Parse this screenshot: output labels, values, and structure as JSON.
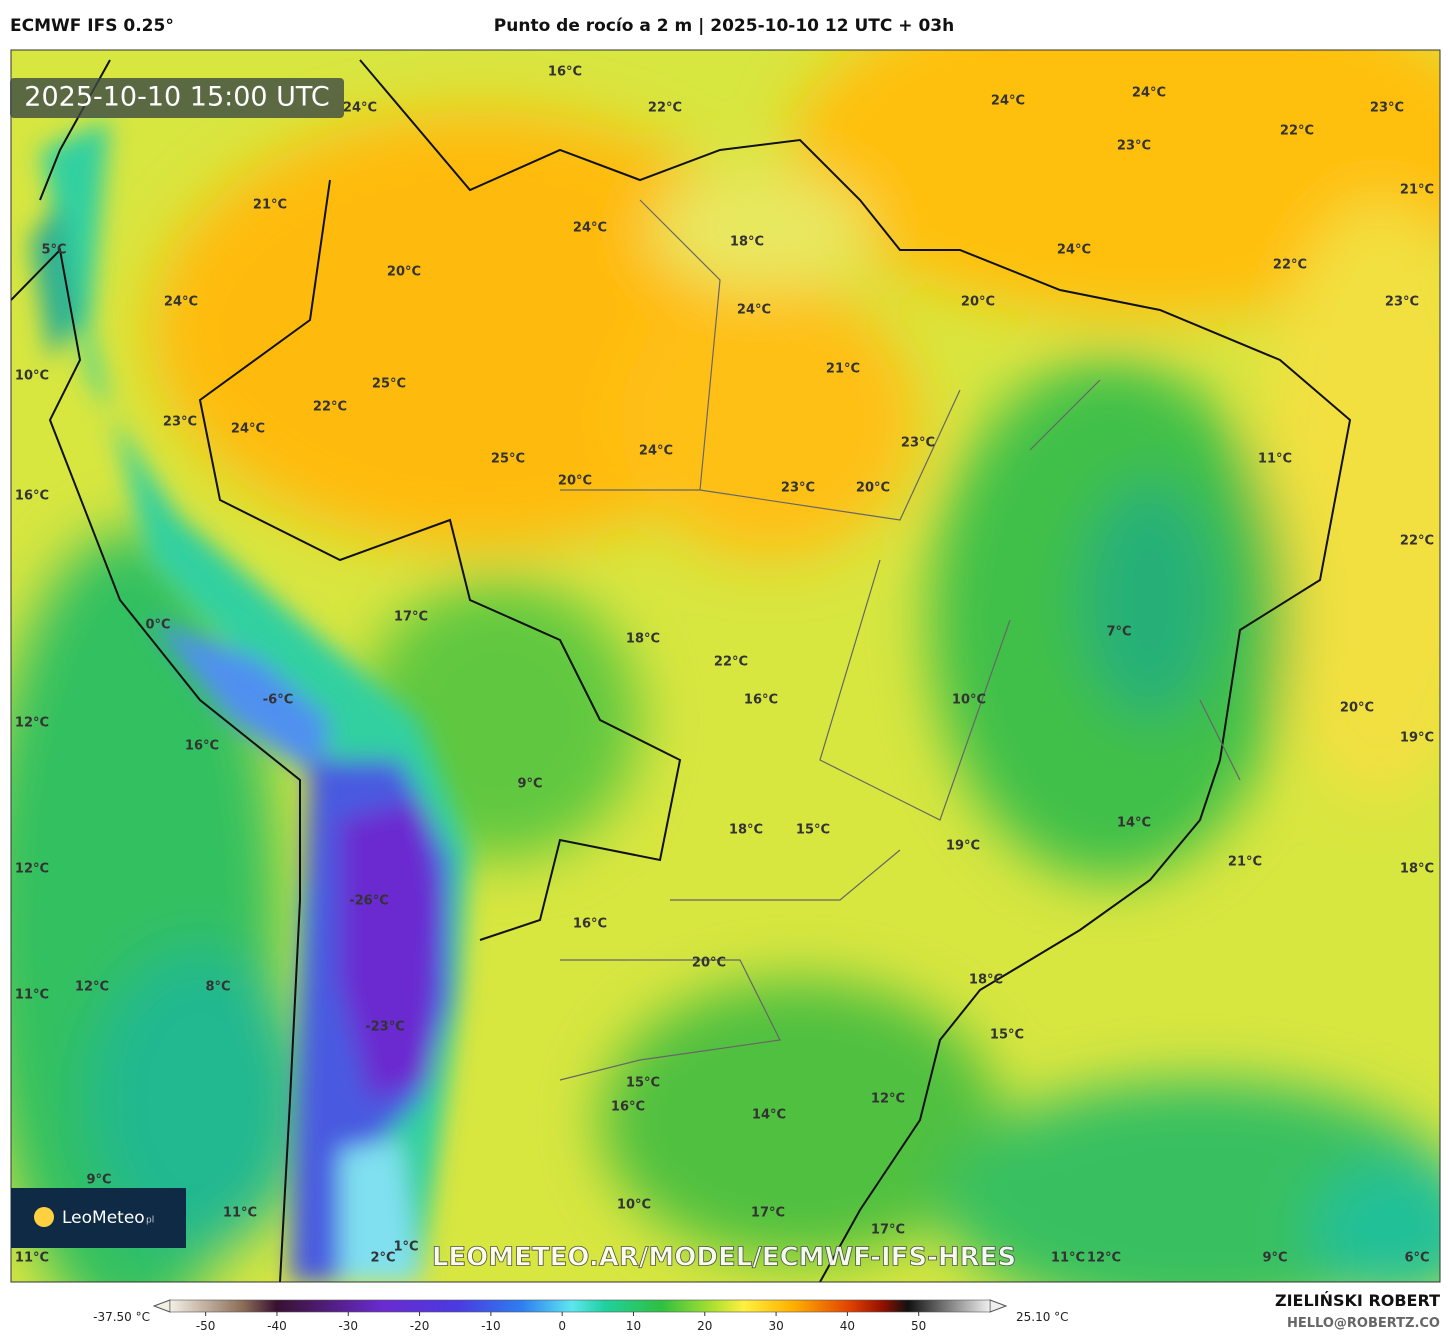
{
  "header": {
    "model": "ECMWF IFS 0.25°",
    "title": "Punto de rocío a 2 m | 2025-10-10 12 UTC + 03h"
  },
  "map": {
    "timestamp": "2025-10-10 15:00 UTC",
    "watermark": "LEOMETEO.AR/MODEL/ECMWF-IFS-HRES",
    "logo": "LeoMeteo",
    "logo_suffix": "pl",
    "labels": [
      "16°C",
      "24°C",
      "22°C",
      "24°C",
      "24°C",
      "23°C",
      "22°C",
      "23°C",
      "21°C",
      "21°C",
      "24°C",
      "18°C",
      "24°C",
      "5°C",
      "20°C",
      "22°C",
      "20°C",
      "23°C",
      "24°C",
      "24°C",
      "21°C",
      "10°C",
      "25°C",
      "22°C",
      "23°C",
      "24°C",
      "23°C",
      "24°C",
      "11°C",
      "25°C",
      "20°C",
      "23°C",
      "20°C",
      "16°C",
      "22°C",
      "17°C",
      "0°C",
      "7°C",
      "18°C",
      "22°C",
      "-6°C",
      "16°C",
      "10°C",
      "20°C",
      "12°C",
      "19°C",
      "16°C",
      "9°C",
      "14°C",
      "18°C",
      "15°C",
      "19°C",
      "21°C",
      "12°C",
      "18°C",
      "-26°C",
      "16°C",
      "20°C",
      "18°C",
      "11°C",
      "12°C",
      "8°C",
      "-23°C",
      "15°C",
      "15°C",
      "16°C",
      "12°C",
      "14°C",
      "9°C",
      "10°C",
      "17°C",
      "17°C",
      "11°C",
      "11°C",
      "11°C",
      "12°C",
      "9°C",
      "6°C",
      "2°C",
      "1°C"
    ]
  },
  "colorbar": {
    "min_label": "-37.50 °C",
    "max_label": "25.10 °C",
    "lim": [
      -55,
      60
    ],
    "ticks": [
      -50,
      -40,
      -30,
      -20,
      -10,
      0,
      10,
      20,
      30,
      40,
      50
    ]
  },
  "credits": {
    "author": "ZIELIŃSKI ROBERT",
    "contact": "HELLO@ROBERTZ.CO"
  }
}
